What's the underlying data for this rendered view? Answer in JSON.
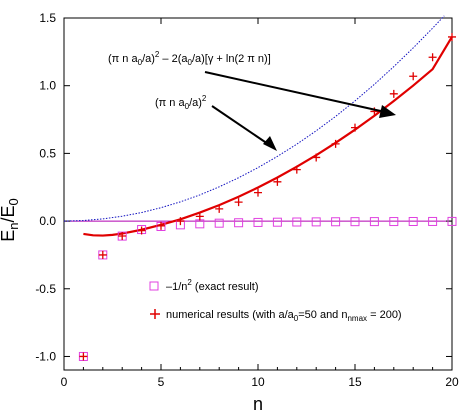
{
  "chart_data": {
    "type": "line",
    "xlabel": "n",
    "ylabel_main": "E",
    "ylabel_sub": "n",
    "ylabel_sep": "/",
    "ylabel_main2": "E",
    "ylabel_sub2": "0",
    "xlim": [
      0,
      20
    ],
    "ylim": [
      -1.1,
      1.5
    ],
    "xticks": [
      0,
      5,
      10,
      15,
      20
    ],
    "yticks": [
      -1.0,
      -0.5,
      0.0,
      0.5,
      1.0,
      1.5
    ],
    "ytick_labels": [
      "-1.0",
      "-0.5",
      "0.0",
      "0.5",
      "1.0",
      "1.5"
    ],
    "xtick_labels": [
      "0",
      "5",
      "10",
      "15",
      "20"
    ],
    "colors": {
      "zero_line": "#b000b0",
      "exact": "#e040e0",
      "numerical": "#e00000",
      "asymptotic": "#e00000",
      "leading": "#1010c0"
    },
    "series": [
      {
        "name": "exact",
        "marker": "open-square",
        "x": [
          1,
          2,
          3,
          4,
          5,
          6,
          7,
          8,
          9,
          10,
          11,
          12,
          13,
          14,
          15,
          16,
          17,
          18,
          19,
          20
        ],
        "y": [
          -1.0,
          -0.25,
          -0.111,
          -0.0625,
          -0.04,
          -0.0278,
          -0.0204,
          -0.0156,
          -0.0123,
          -0.01,
          -0.0083,
          -0.0069,
          -0.0059,
          -0.0051,
          -0.0044,
          -0.0039,
          -0.0035,
          -0.0031,
          -0.0028,
          -0.0025
        ]
      },
      {
        "name": "numerical",
        "marker": "plus",
        "x": [
          1,
          2,
          3,
          4,
          5,
          6,
          7,
          8,
          9,
          10,
          11,
          12,
          13,
          14,
          15,
          16,
          17,
          18,
          19,
          20
        ],
        "y": [
          -1.0,
          -0.25,
          -0.11,
          -0.07,
          -0.035,
          0.0,
          0.035,
          0.09,
          0.14,
          0.21,
          0.29,
          0.38,
          0.47,
          0.57,
          0.69,
          0.81,
          0.94,
          1.07,
          1.21,
          1.36
        ]
      },
      {
        "name": "asymptotic",
        "style": "solid",
        "formula": "(pi n a0/a)^2 - 2(a0/a)[gamma + ln(2 pi n)]",
        "x": [
          1,
          1.5,
          2,
          2.5,
          3,
          4,
          5,
          6,
          7,
          8,
          9,
          10,
          11,
          12,
          13,
          14,
          15,
          16,
          17,
          18,
          19,
          20
        ],
        "y": [
          -0.095,
          -0.105,
          -0.107,
          -0.102,
          -0.092,
          -0.064,
          -0.028,
          0.013,
          0.063,
          0.118,
          0.18,
          0.248,
          0.322,
          0.402,
          0.487,
          0.578,
          0.675,
          0.778,
          0.887,
          1.001,
          1.122,
          1.361
        ]
      },
      {
        "name": "leading",
        "style": "dotted",
        "formula": "(pi n a0/a)^2",
        "x": [
          0,
          1,
          2,
          3,
          4,
          5,
          6,
          7,
          8,
          9,
          10,
          11,
          12,
          13,
          14,
          15,
          16,
          17,
          18,
          19,
          19.6
        ],
        "y": [
          0,
          0.004,
          0.016,
          0.036,
          0.063,
          0.099,
          0.142,
          0.193,
          0.253,
          0.32,
          0.395,
          0.478,
          0.568,
          0.667,
          0.773,
          0.888,
          1.01,
          1.141,
          1.279,
          1.425,
          1.516
        ]
      }
    ],
    "annotations": {
      "formula1": {
        "pre": "(π n a",
        "s1": "0",
        "mid1": "/a)",
        "sup1": "2",
        "mid2": " – 2(a",
        "s2": "0",
        "post": "/a)[γ + ln(2 π n)]"
      },
      "formula2": {
        "pre": "(π n a",
        "s1": "0",
        "mid": "/a)",
        "sup": "2"
      },
      "arrow1_target": [
        16,
        0.81
      ],
      "arrow2_target": [
        10.8,
        0.48
      ]
    },
    "legend": {
      "placement": "bottom-center",
      "item1": {
        "text_pre": "–1/n",
        "text_sup": "2",
        "text_post": " (exact result)"
      },
      "item2": {
        "text_pre": "numerical results (with a/a",
        "text_sub0": "0",
        "text_mid": "=50 and n",
        "text_sub1": "nmax",
        "text_post": " = 200)"
      }
    }
  }
}
